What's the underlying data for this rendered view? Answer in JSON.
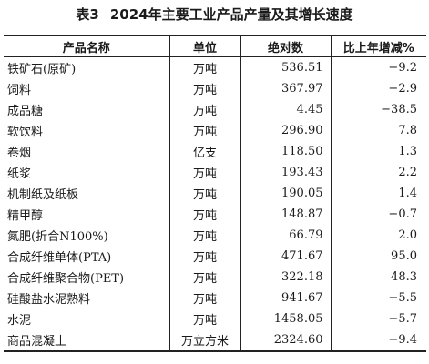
{
  "caption": {
    "number": "表3",
    "title": "2024年主要工业产品产量及其增长速度"
  },
  "headers": {
    "name": "产品名称",
    "unit": "单位",
    "value": "绝对数",
    "change": "比上年增减%"
  },
  "rows": [
    {
      "name": "铁矿石(原矿)",
      "unit": "万吨",
      "value": "536.51",
      "change": "−9.2"
    },
    {
      "name": "饲料",
      "unit": "万吨",
      "value": "367.97",
      "change": "−2.9"
    },
    {
      "name": "成品糖",
      "unit": "万吨",
      "value": "4.45",
      "change": "−38.5"
    },
    {
      "name": "软饮料",
      "unit": "万吨",
      "value": "296.90",
      "change": "7.8"
    },
    {
      "name": "卷烟",
      "unit": "亿支",
      "value": "118.50",
      "change": "1.3"
    },
    {
      "name": "纸浆",
      "unit": "万吨",
      "value": "193.43",
      "change": "2.2"
    },
    {
      "name": "机制纸及纸板",
      "unit": "万吨",
      "value": "190.05",
      "change": "1.4"
    },
    {
      "name": "精甲醇",
      "unit": "万吨",
      "value": "148.87",
      "change": "−0.7"
    },
    {
      "name": "氮肥(折合N100%)",
      "unit": "万吨",
      "value": "66.79",
      "change": "2.0"
    },
    {
      "name": "合成纤维单体(PTA)",
      "unit": "万吨",
      "value": "471.67",
      "change": "95.0"
    },
    {
      "name": "合成纤维聚合物(PET)",
      "unit": "万吨",
      "value": "322.18",
      "change": "48.3"
    },
    {
      "name": "硅酸盐水泥熟料",
      "unit": "万吨",
      "value": "941.67",
      "change": "−5.5"
    },
    {
      "name": "水泥",
      "unit": "万吨",
      "value": "1458.05",
      "change": "−5.7"
    },
    {
      "name": "商品混凝土",
      "unit": "万立方米",
      "value": "2324.60",
      "change": "−9.4"
    }
  ]
}
